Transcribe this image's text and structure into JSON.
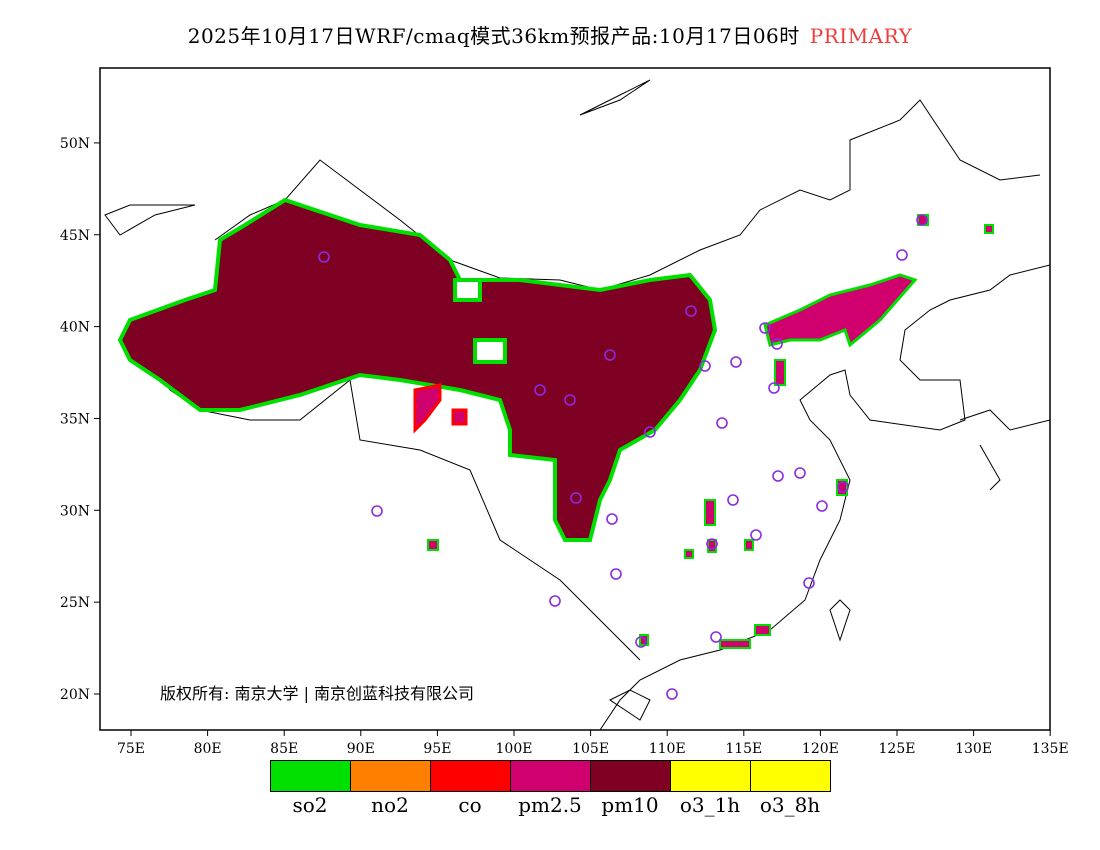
{
  "title": {
    "main": "2025年10月17日WRF/cmaq模式36km预报产品:10月17日06时",
    "tag": "PRIMARY",
    "tag_color": "#f03c3c"
  },
  "map": {
    "lon_ticks": [
      "75E",
      "80E",
      "85E",
      "90E",
      "95E",
      "100E",
      "105E",
      "110E",
      "115E",
      "120E",
      "125E",
      "130E",
      "135E"
    ],
    "lat_ticks": [
      "20N",
      "25N",
      "30N",
      "35N",
      "40N",
      "45N",
      "50N"
    ],
    "copyright": "版权所有: 南京大学 | 南京创蓝科技有限公司"
  },
  "legend": [
    {
      "label": "so2",
      "color": "#00e000"
    },
    {
      "label": "no2",
      "color": "#ff8000"
    },
    {
      "label": "co",
      "color": "#ff0000"
    },
    {
      "label": "pm2.5",
      "color": "#d0006e"
    },
    {
      "label": "pm10",
      "color": "#7e0023"
    },
    {
      "label": "o3_1h",
      "color": "#ffff00"
    },
    {
      "label": "o3_8h",
      "color": "#ffff00"
    }
  ]
}
